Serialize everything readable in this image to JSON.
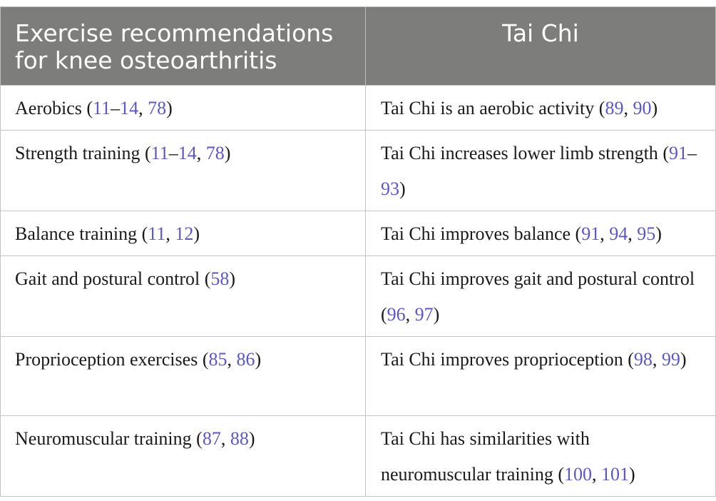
{
  "header": {
    "col1": "Exercise recommendations for knee osteoarthritis",
    "col2": "Tai Chi"
  },
  "rows": [
    {
      "left": {
        "text": "Aerobics ",
        "ref_open": "(",
        "refs": [
          "11",
          "–",
          "14",
          ", ",
          "78"
        ],
        "ref_close": ")"
      },
      "right": {
        "text": "Tai Chi is an aerobic activity ",
        "ref_open": "(",
        "refs": [
          "89",
          ", ",
          "90"
        ],
        "ref_close": ")"
      }
    },
    {
      "left": {
        "text": "Strength training ",
        "ref_open": "(",
        "refs": [
          "11",
          "–",
          "14",
          ", ",
          "78"
        ],
        "ref_close": ")"
      },
      "right": {
        "text": "Tai Chi increases lower limb strength ",
        "ref_open": "(",
        "refs": [
          "91",
          "–",
          "93"
        ],
        "ref_close": ")"
      }
    },
    {
      "left": {
        "text": "Balance training ",
        "ref_open": "(",
        "refs": [
          "11",
          ", ",
          "12"
        ],
        "ref_close": ")"
      },
      "right": {
        "text": "Tai Chi improves balance ",
        "ref_open": "(",
        "refs": [
          "91",
          ", ",
          "94",
          ", ",
          "95"
        ],
        "ref_close": ")"
      }
    },
    {
      "left": {
        "text": "Gait and postural control ",
        "ref_open": "(",
        "refs": [
          "58"
        ],
        "ref_close": ")"
      },
      "right": {
        "text": "Tai Chi improves gait and postural control ",
        "ref_open": "(",
        "refs": [
          "96",
          ", ",
          "97"
        ],
        "ref_close": ")"
      }
    },
    {
      "left": {
        "text": "Proprioception exercises ",
        "ref_open": "(",
        "refs": [
          "85",
          ", ",
          "86"
        ],
        "ref_close": ")"
      },
      "right": {
        "text": "Tai Chi improves proprioception ",
        "ref_open": "(",
        "refs": [
          "98",
          ", ",
          "99"
        ],
        "ref_close": ")"
      }
    },
    {
      "left": {
        "text": "Neuromuscular training ",
        "ref_open": "(",
        "refs": [
          "87",
          ", ",
          "88"
        ],
        "ref_close": ")"
      },
      "right": {
        "text": "Tai Chi has similarities with neuromuscular training ",
        "ref_open": "(",
        "refs": [
          "100",
          ", ",
          "101"
        ],
        "ref_close": ")"
      }
    }
  ],
  "colors": {
    "header_bg": "#7d7e7c",
    "header_text": "#ffffff",
    "reference_link": "#5a57c9",
    "grid_line": "#c3c3c3"
  }
}
